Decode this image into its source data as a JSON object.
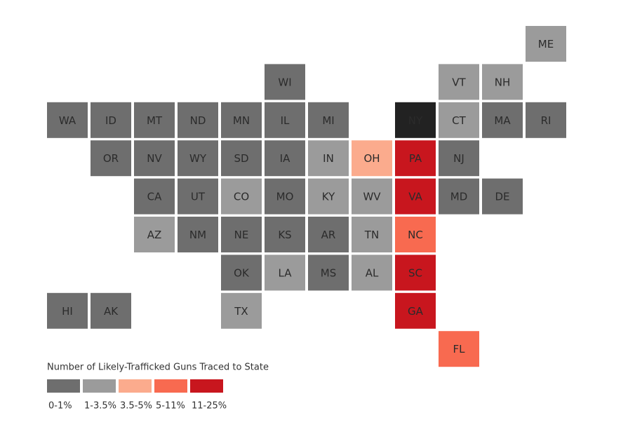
{
  "legend": {
    "title": "Number of Likely-Trafficked Guns Traced to State",
    "bins": [
      {
        "label": "0-1%",
        "color": "#6e6e6e"
      },
      {
        "label": "1-3.5%",
        "color": "#9b9b9b"
      },
      {
        "label": "3.5-5%",
        "color": "#fbab8d"
      },
      {
        "label": "5-11%",
        "color": "#f86a50"
      },
      {
        "label": "11-25%",
        "color": "#c8161e"
      }
    ]
  },
  "states": [
    {
      "label": "ME",
      "bin": 1
    },
    {
      "label": "WI",
      "bin": 0
    },
    {
      "label": "VT",
      "bin": 1
    },
    {
      "label": "NH",
      "bin": 1
    },
    {
      "label": "WA",
      "bin": 0
    },
    {
      "label": "ID",
      "bin": 0
    },
    {
      "label": "MT",
      "bin": 0
    },
    {
      "label": "ND",
      "bin": 0
    },
    {
      "label": "MN",
      "bin": 0
    },
    {
      "label": "IL",
      "bin": 0
    },
    {
      "label": "MI",
      "bin": 0
    },
    {
      "label": "NY",
      "color": "#222222"
    },
    {
      "label": "CT",
      "bin": 1
    },
    {
      "label": "MA",
      "bin": 0
    },
    {
      "label": "RI",
      "bin": 0
    },
    {
      "label": "OR",
      "bin": 0
    },
    {
      "label": "NV",
      "bin": 0
    },
    {
      "label": "WY",
      "bin": 0
    },
    {
      "label": "SD",
      "bin": 0
    },
    {
      "label": "IA",
      "bin": 0
    },
    {
      "label": "IN",
      "bin": 1
    },
    {
      "label": "OH",
      "bin": 2
    },
    {
      "label": "PA",
      "bin": 4
    },
    {
      "label": "NJ",
      "bin": 0
    },
    {
      "label": "CA",
      "bin": 0
    },
    {
      "label": "UT",
      "bin": 0
    },
    {
      "label": "CO",
      "bin": 1
    },
    {
      "label": "MO",
      "bin": 0
    },
    {
      "label": "KY",
      "bin": 1
    },
    {
      "label": "WV",
      "bin": 1
    },
    {
      "label": "VA",
      "bin": 4
    },
    {
      "label": "MD",
      "bin": 0
    },
    {
      "label": "DE",
      "bin": 0
    },
    {
      "label": "AZ",
      "bin": 1
    },
    {
      "label": "NM",
      "bin": 0
    },
    {
      "label": "NE",
      "bin": 0
    },
    {
      "label": "KS",
      "bin": 0
    },
    {
      "label": "AR",
      "bin": 0
    },
    {
      "label": "TN",
      "bin": 1
    },
    {
      "label": "NC",
      "bin": 3
    },
    {
      "label": "OK",
      "bin": 0
    },
    {
      "label": "LA",
      "bin": 1
    },
    {
      "label": "MS",
      "bin": 0
    },
    {
      "label": "AL",
      "bin": 1
    },
    {
      "label": "SC",
      "bin": 4
    },
    {
      "label": "HI",
      "bin": 0
    },
    {
      "label": "AK",
      "bin": 0
    },
    {
      "label": "TX",
      "bin": 1
    },
    {
      "label": "GA",
      "bin": 4
    },
    {
      "label": "FL",
      "bin": 3
    }
  ]
}
